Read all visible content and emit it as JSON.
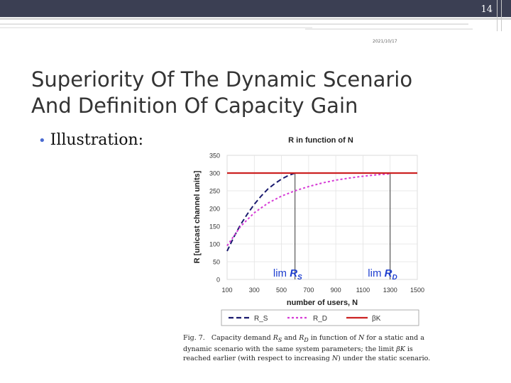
{
  "slide": {
    "page_number": "14",
    "date": "2021/10/17",
    "title_line1": "Superiority Of The Dynamic Scenario",
    "title_line2": "And Definition Of Capacity Gain",
    "bullet": "Illustration:"
  },
  "chart_data": {
    "type": "line",
    "title": "R in function of N",
    "xlabel": "number of users, N",
    "ylabel": "R [unicast channel units]",
    "xticks": [
      100,
      300,
      500,
      700,
      900,
      1100,
      1300,
      1500
    ],
    "yticks": [
      0,
      50,
      100,
      150,
      200,
      250,
      300,
      350
    ],
    "xlim": [
      100,
      1500
    ],
    "ylim": [
      0,
      350
    ],
    "annotations": [
      {
        "text_prefix": "lim ",
        "text_sym": "R",
        "text_sub": "S",
        "x": 600
      },
      {
        "text_prefix": "lim ",
        "text_sym": "R",
        "text_sub": "D",
        "x": 1300
      }
    ],
    "series": [
      {
        "name": "R_S",
        "color": "#1a1a6e",
        "style": "dashed",
        "x": [
          100,
          150,
          200,
          250,
          300,
          350,
          400,
          450,
          500,
          550,
          600
        ],
        "y": [
          80,
          120,
          155,
          185,
          212,
          235,
          255,
          270,
          283,
          293,
          300
        ]
      },
      {
        "name": "R_D",
        "color": "#d63bd6",
        "style": "dotted",
        "x": [
          100,
          200,
          300,
          400,
          500,
          600,
          700,
          800,
          900,
          1000,
          1100,
          1200,
          1300
        ],
        "y": [
          95,
          150,
          188,
          215,
          235,
          250,
          262,
          272,
          280,
          286,
          291,
          295,
          298
        ]
      },
      {
        "name": "βK",
        "color": "#cc2222",
        "style": "solid",
        "x": [
          100,
          1500
        ],
        "y": [
          300,
          300
        ]
      }
    ],
    "caption": "Fig. 7.   Capacity demand R_S and R_D in function of N for a static and a dynamic scenario with the same system parameters; the limit βK is reached earlier (with respect to increasing N) under the static scenario."
  }
}
